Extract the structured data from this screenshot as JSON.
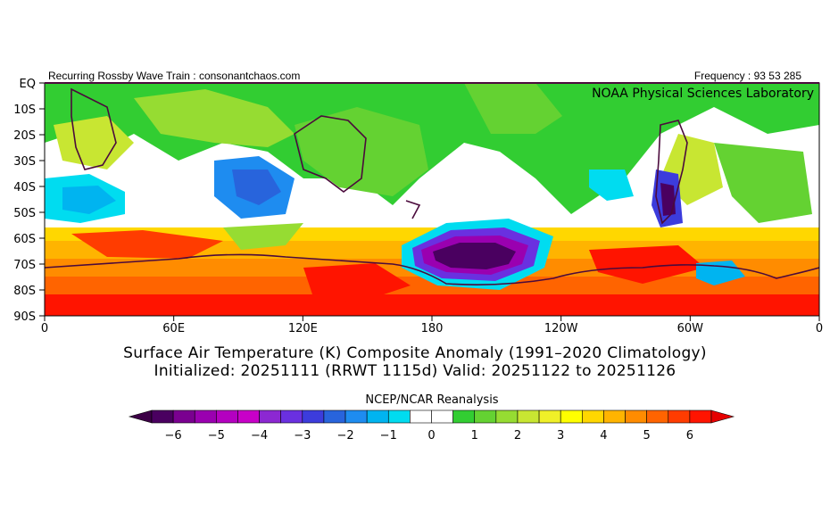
{
  "header": {
    "left_text": "Recurring Rossby Wave Train : consonantchaos.com",
    "right_text": "Frequency : 93 53 285"
  },
  "map": {
    "credit": "NOAA Physical Sciences Laboratory",
    "lat_labels": [
      "EQ",
      "10S",
      "20S",
      "30S",
      "40S",
      "50S",
      "60S",
      "70S",
      "80S",
      "90S"
    ],
    "lon_labels": [
      "0",
      "60E",
      "120E",
      "180",
      "120W",
      "60W",
      "0"
    ]
  },
  "title": {
    "line1": "Surface Air Temperature (K) Composite Anomaly (1991–2020 Climatology)",
    "line2": "Initialized: 20251111 (RRWT 1115d) Valid: 20251122 to 20251126"
  },
  "colorbar": {
    "title": "NCEP/NCAR Reanalysis",
    "tick_labels": [
      "-6",
      "-5",
      "-4",
      "-3",
      "-2",
      "-1",
      "0",
      "1",
      "2",
      "3",
      "4",
      "5",
      "6"
    ],
    "colors": [
      "#4a0060",
      "#7a0090",
      "#9a00b0",
      "#b400c0",
      "#c800c8",
      "#8c28d2",
      "#6a30e0",
      "#3c3cdc",
      "#2864dc",
      "#1e8cf0",
      "#00b4f0",
      "#00dcf0",
      "#ffffff",
      "#ffffff",
      "#32cd32",
      "#64d232",
      "#96dc32",
      "#c8e632",
      "#f0f028",
      "#ffff00",
      "#ffd700",
      "#ffb400",
      "#ff8c00",
      "#ff6400",
      "#ff3c00",
      "#ff1400"
    ],
    "under_color": "#3c0046",
    "over_color": "#e60000"
  }
}
